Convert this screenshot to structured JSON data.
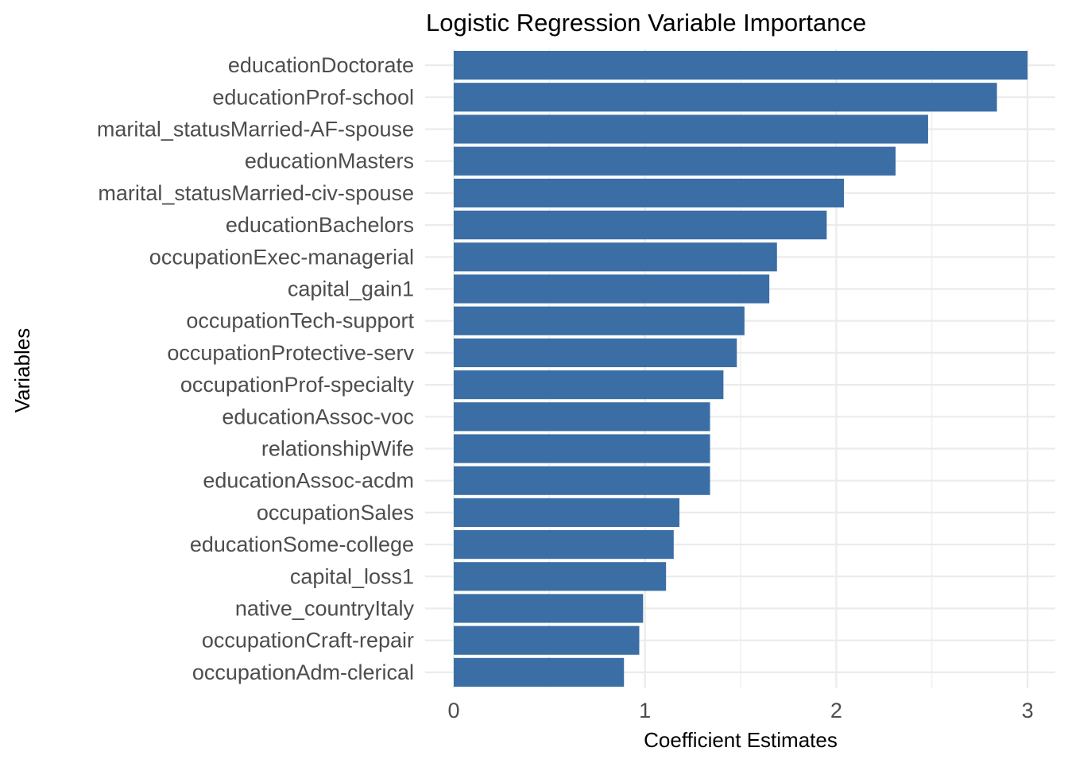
{
  "chart_data": {
    "type": "bar",
    "orientation": "horizontal",
    "title": "Logistic Regression Variable Importance",
    "xlabel": "Coefficient Estimates",
    "ylabel": "Variables",
    "xlim": [
      0,
      3.15
    ],
    "x_ticks": [
      0,
      1,
      2,
      3
    ],
    "grid": true,
    "legend": "none",
    "bar_color": "#3a6ea5",
    "categories": [
      "educationDoctorate",
      "educationProf-school",
      "marital_statusMarried-AF-spouse",
      "educationMasters",
      "marital_statusMarried-civ-spouse",
      "educationBachelors",
      "occupationExec-managerial",
      "capital_gain1",
      "occupationTech-support",
      "occupationProtective-serv",
      "occupationProf-specialty",
      "educationAssoc-voc",
      "relationshipWife",
      "educationAssoc-acdm",
      "occupationSales",
      "educationSome-college",
      "capital_loss1",
      "native_countryItaly",
      "occupationCraft-repair",
      "occupationAdm-clerical"
    ],
    "values": [
      3.0,
      2.84,
      2.48,
      2.31,
      2.04,
      1.95,
      1.69,
      1.65,
      1.52,
      1.48,
      1.41,
      1.34,
      1.34,
      1.34,
      1.18,
      1.15,
      1.11,
      0.99,
      0.97,
      0.89
    ]
  }
}
